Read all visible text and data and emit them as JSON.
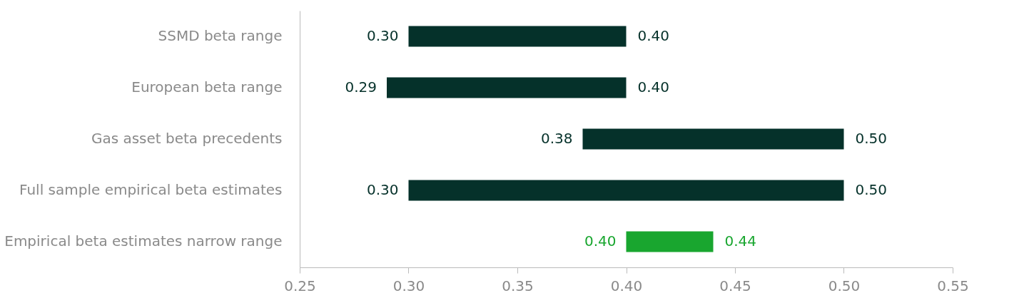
{
  "chart_data": {
    "type": "bar",
    "orientation": "horizontal",
    "categories": [
      "SSMD beta range",
      "European beta range",
      "Gas asset beta precedents",
      "Full sample empirical beta estimates",
      "Empirical beta estimates narrow range"
    ],
    "base": [
      0.3,
      0.29,
      0.38,
      0.3,
      0.4
    ],
    "values": [
      0.1,
      0.11,
      0.12,
      0.2,
      0.04
    ],
    "colors": [
      "#05312a",
      "#05312a",
      "#05312a",
      "#05312a",
      "#19a62f"
    ],
    "xlim": [
      0.25,
      0.55
    ],
    "xticks": [
      {
        "value": 0.25,
        "label": "0.25"
      },
      {
        "value": 0.3,
        "label": "0.30"
      },
      {
        "value": 0.35,
        "label": "0.35"
      },
      {
        "value": 0.4,
        "label": "0.40"
      },
      {
        "value": 0.45,
        "label": "0.45"
      },
      {
        "value": 0.5,
        "label": "0.50"
      },
      {
        "value": 0.55,
        "label": "0.55"
      }
    ],
    "grid": false,
    "annotations": [
      {
        "text": "0.30",
        "x": 0.3,
        "y": "SSMD beta range"
      },
      {
        "text": "0.40",
        "x": 0.4,
        "y": "SSMD beta range"
      },
      {
        "text": "0.29",
        "x": 0.29,
        "y": "European beta range"
      },
      {
        "text": "0.40",
        "x": 0.4,
        "y": "European beta range"
      },
      {
        "text": "0.38",
        "x": 0.38,
        "y": "Gas asset beta precedents"
      },
      {
        "text": "0.50",
        "x": 0.5,
        "y": "Gas asset beta precedents"
      },
      {
        "text": "0.30",
        "x": 0.3,
        "y": "Full sample empirical beta estimates"
      },
      {
        "text": "0.50",
        "x": 0.5,
        "y": "Full sample empirical beta estimates"
      },
      {
        "text": "0.40",
        "x": 0.4,
        "y": "Empirical beta estimates narrow range"
      },
      {
        "text": "0.44",
        "x": 0.44,
        "y": "Empirical beta estimates narrow range"
      }
    ]
  }
}
